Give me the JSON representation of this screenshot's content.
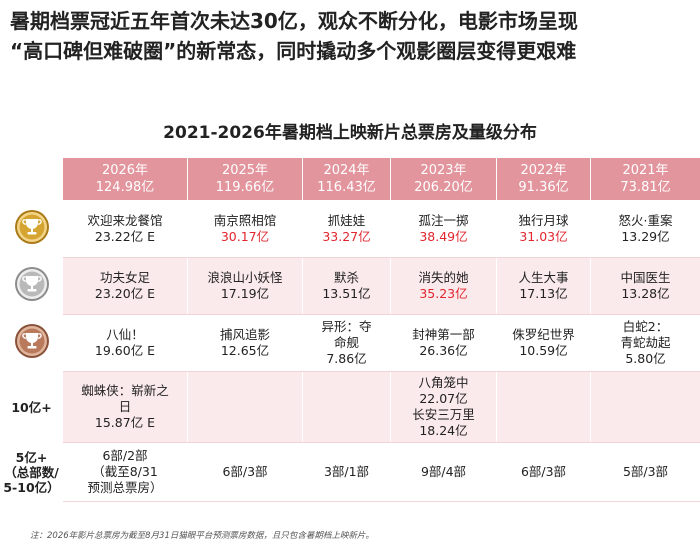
{
  "headline": {
    "line1": "暑期档票冠近五年首次未达30亿，观众不断分化，电影市场呈现",
    "line2": "“高口碑但难破圈”的新常态，同时撬动多个观影圈层变得更艰难"
  },
  "table_title": "2021-2026年暑期档上映新片总票房及量级分布",
  "columns": [
    {
      "year": "2026年",
      "total": "124.98亿"
    },
    {
      "year": "2025年",
      "total": "119.66亿"
    },
    {
      "year": "2024年",
      "total": "116.43亿"
    },
    {
      "year": "2023年",
      "total": "206.20亿"
    },
    {
      "year": "2022年",
      "total": "91.36亿"
    },
    {
      "year": "2021年",
      "total": "73.81亿"
    }
  ],
  "rows": [
    {
      "label": "",
      "icon": "gold-trophy-medal-icon",
      "cells": [
        {
          "title": "欢迎来龙餐馆",
          "value": "23.22亿 E",
          "highlight": false
        },
        {
          "title": "南京照相馆",
          "value": "30.17亿",
          "highlight": true
        },
        {
          "title": "抓娃娃",
          "value": "33.27亿",
          "highlight": true
        },
        {
          "title": "孤注一掷",
          "value": "38.49亿",
          "highlight": true
        },
        {
          "title": "独行月球",
          "value": "31.03亿",
          "highlight": true
        },
        {
          "title": "怒火·重案",
          "value": "13.29亿",
          "highlight": false
        }
      ]
    },
    {
      "label": "",
      "icon": "silver-trophy-medal-icon",
      "cells": [
        {
          "title": "功夫女足",
          "value": "23.20亿 E",
          "highlight": false
        },
        {
          "title": "浪浪山小妖怪",
          "value": "17.19亿",
          "highlight": false
        },
        {
          "title": "默杀",
          "value": "13.51亿",
          "highlight": false
        },
        {
          "title": "消失的她",
          "value": "35.23亿",
          "highlight": true
        },
        {
          "title": "人生大事",
          "value": "17.13亿",
          "highlight": false
        },
        {
          "title": "中国医生",
          "value": "13.28亿",
          "highlight": false
        }
      ]
    },
    {
      "label": "",
      "icon": "bronze-trophy-medal-icon",
      "cells": [
        {
          "title": "八仙！",
          "value": "19.60亿 E",
          "highlight": false
        },
        {
          "title": "捕风追影",
          "value": "12.65亿",
          "highlight": false
        },
        {
          "title": "异形：夺\n命舰",
          "value": "7.86亿",
          "highlight": false
        },
        {
          "title": "封神第一部",
          "value": "26.36亿",
          "highlight": false
        },
        {
          "title": "侏罗纪世界",
          "value": "10.59亿",
          "highlight": false
        },
        {
          "title": "白蛇2：\n青蛇劫起",
          "value": "5.80亿",
          "highlight": false
        }
      ]
    }
  ],
  "tier_10": {
    "label": "10亿+",
    "cells": [
      [
        "蜘蛛侠：崭新之",
        "日",
        "15.87亿 E"
      ],
      [],
      [],
      [
        "八角笼中",
        "22.07亿",
        "长安三万里",
        "18.24亿"
      ],
      [],
      []
    ]
  },
  "tier_5": {
    "label_lines": [
      "5亿+",
      "（总部数/",
      "5-10亿）"
    ],
    "cells": [
      [
        "6部/2部",
        "（截至8/31",
        "预测总票房）"
      ],
      [
        "6部/3部"
      ],
      [
        "3部/1部"
      ],
      [
        "9部/4部"
      ],
      [
        "6部/3部"
      ],
      [
        "5部/3部"
      ]
    ]
  },
  "note": "注：2026年影片总票房为截至8月31日猫眼平台预测票房数据，且只包含暑期档上映新片。",
  "colors": {
    "header_bg": "#e3959e",
    "band_bg": "#fbeaec",
    "highlight": "#e0262f",
    "gold": "#d6a531",
    "silver": "#b9b9b9",
    "bronze": "#b97a5c"
  }
}
